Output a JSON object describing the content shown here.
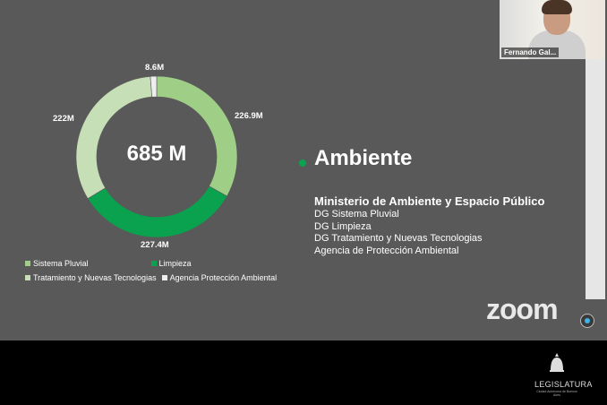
{
  "slide": {
    "donut": {
      "total_label": "685 M",
      "segments": [
        {
          "name": "Sistema Pluvial",
          "value": 226.9,
          "label": "226.9M",
          "color": "#9fce86"
        },
        {
          "name": "Limpieza",
          "value": 227.4,
          "label": "227.4M",
          "color": "#0aa14f"
        },
        {
          "name": "Tratamiento y Nuevas Tecnologias",
          "value": 222,
          "label": "222M",
          "color": "#c6dfb6"
        },
        {
          "name": "Agencia Protección Ambiental",
          "value": 8.6,
          "label": "8.6M",
          "color": "#eeeeee"
        }
      ]
    },
    "legend": {
      "row1": [
        "Sistema Pluvial",
        "Limpieza"
      ],
      "row2": [
        "Tratamiento y Nuevas Tecnologias",
        "Agencia Protección Ambiental"
      ]
    },
    "title": "Ambiente",
    "title_dot_color": "#0aa14f",
    "ministry": "Ministerio de Ambiente y Espacio Público",
    "dg_items": [
      "DG Sistema Pluvial",
      "DG Limpieza",
      "DG Tratamiento y Nuevas Tecnologias",
      "Agencia de Protección Ambiental"
    ]
  },
  "video": {
    "participant_name": "Fernando Gal..."
  },
  "zoom": {
    "logo_text": "zoom"
  },
  "footer": {
    "logo_text": "LEGISLATURA",
    "sub_text": "Ciudad Autónoma de Buenos Aires"
  }
}
